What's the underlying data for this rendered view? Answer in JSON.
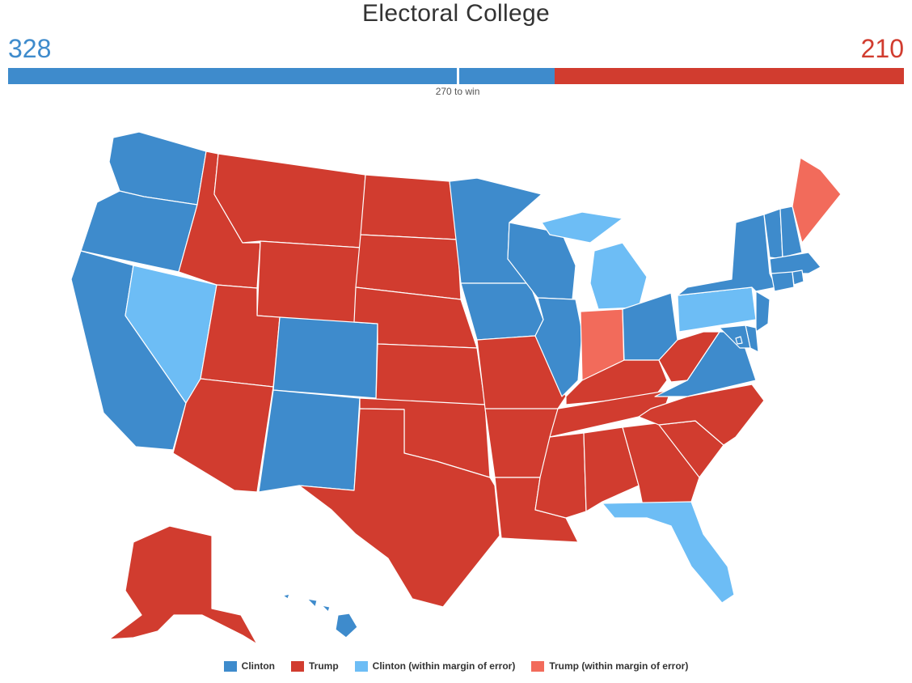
{
  "title": "Electoral College",
  "scores": {
    "clinton": "328",
    "trump": "210"
  },
  "bar": {
    "total": 538,
    "win_threshold": 270,
    "win_label": "270 to win",
    "segments": [
      {
        "candidate": "Clinton",
        "votes": 328,
        "color": "#3e8bcc"
      },
      {
        "candidate": "Trump",
        "votes": 210,
        "color": "#d13c2f"
      }
    ]
  },
  "colors": {
    "clinton": "#3e8bcc",
    "trump": "#d13c2f",
    "clinton_margin": "#6dbdf5",
    "trump_margin": "#f26b5b"
  },
  "legend": [
    {
      "label": "Clinton",
      "key": "clinton"
    },
    {
      "label": "Trump",
      "key": "trump"
    },
    {
      "label": "Clinton (within margin of error)",
      "key": "clinton_margin"
    },
    {
      "label": "Trump (within margin of error)",
      "key": "trump_margin"
    }
  ],
  "states": {
    "WA": "clinton",
    "OR": "clinton",
    "CA": "clinton",
    "NV": "clinton_margin",
    "ID": "trump",
    "MT": "trump",
    "WY": "trump",
    "UT": "trump",
    "AZ": "trump",
    "CO": "clinton",
    "NM": "clinton",
    "ND": "trump",
    "SD": "trump",
    "NE": "trump",
    "KS": "trump",
    "OK": "trump",
    "TX": "trump",
    "MN": "clinton",
    "IA": "clinton",
    "MO": "trump",
    "AR": "trump",
    "LA": "trump",
    "WI": "clinton",
    "IL": "clinton",
    "MI": "clinton_margin",
    "IN": "trump_margin",
    "OH": "clinton",
    "KY": "trump",
    "TN": "trump",
    "MS": "trump",
    "AL": "trump",
    "GA": "trump",
    "FL": "clinton_margin",
    "SC": "trump",
    "NC": "trump",
    "VA": "clinton",
    "WV": "trump",
    "PA": "clinton_margin",
    "NY": "clinton",
    "VT": "clinton",
    "NH": "clinton",
    "ME": "trump_margin",
    "MA": "clinton",
    "RI": "clinton",
    "CT": "clinton",
    "NJ": "clinton",
    "DE": "clinton",
    "MD": "clinton",
    "DC": "clinton",
    "AK": "trump",
    "HI": "clinton"
  }
}
